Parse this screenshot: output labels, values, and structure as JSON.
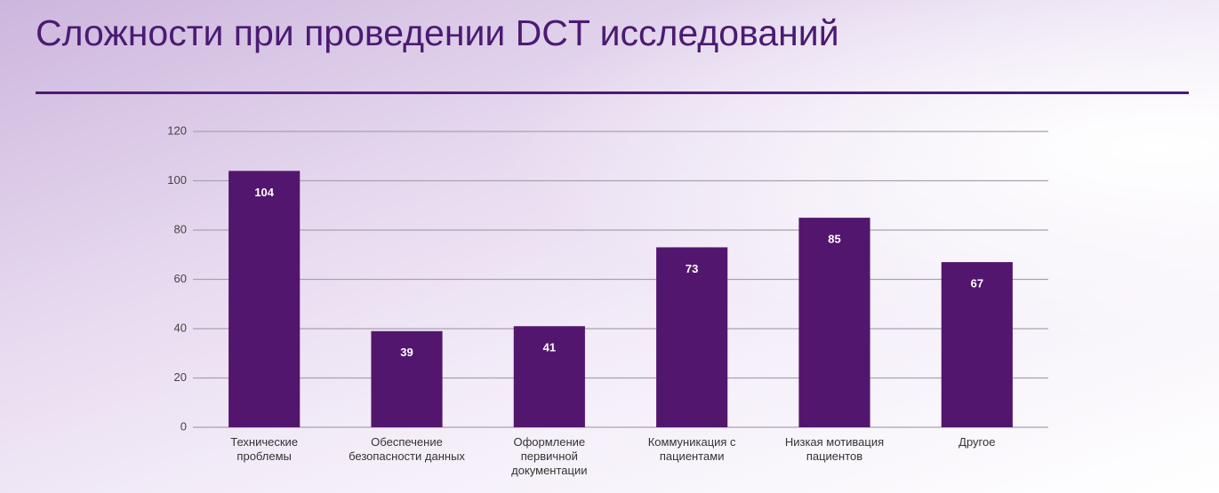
{
  "chart_data": {
    "type": "bar",
    "title": "Сложности при проведении DCT исследований",
    "categories": [
      "Технические проблемы",
      "Обеспечение безопасности данных",
      "Оформление первичной документации",
      "Коммуникация с пациентами",
      "Низкая мотивация пациентов",
      "Другое"
    ],
    "values": [
      104,
      39,
      41,
      73,
      85,
      67
    ],
    "color": "#53166e",
    "ylim": [
      0,
      120
    ],
    "yticks": [
      0,
      20,
      40,
      60,
      80,
      100,
      120
    ],
    "grid": true
  }
}
